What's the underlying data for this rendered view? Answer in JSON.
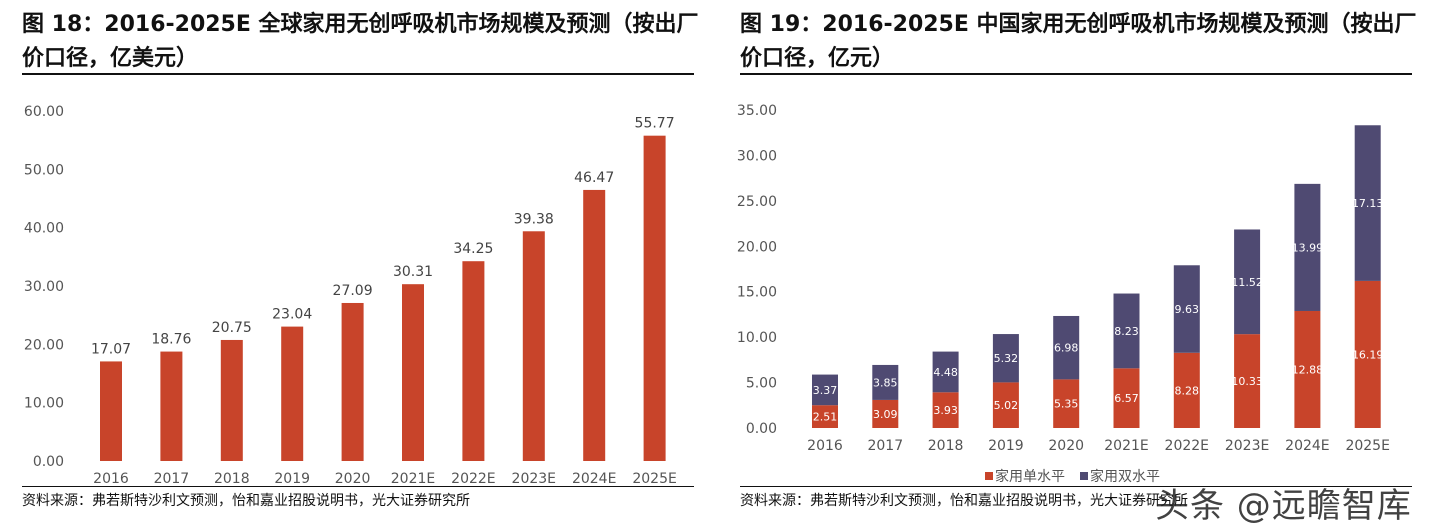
{
  "chart_data": [
    {
      "type": "bar",
      "title": "图 18：2016-2025E 全球家用无创呼吸机市场规模及预测（按出厂价口径，亿美元）",
      "categories": [
        "2016",
        "2017",
        "2018",
        "2019",
        "2020",
        "2021E",
        "2022E",
        "2023E",
        "2024E",
        "2025E"
      ],
      "values": [
        17.07,
        18.76,
        20.75,
        23.04,
        27.09,
        30.31,
        34.25,
        39.38,
        46.47,
        55.77
      ],
      "ylim": [
        0,
        60
      ],
      "yticks": [
        "0.00",
        "10.00",
        "20.00",
        "30.00",
        "40.00",
        "50.00",
        "60.00"
      ],
      "color": "#c8442a",
      "grid": false,
      "source": "资料来源：弗若斯特沙利文预测，怡和嘉业招股说明书，光大证券研究所"
    },
    {
      "type": "bar",
      "stacked": true,
      "title": "图 19：2016-2025E 中国家用无创呼吸机市场规模及预测（按出厂价口径，亿元）",
      "categories": [
        "2016",
        "2017",
        "2018",
        "2019",
        "2020",
        "2021E",
        "2022E",
        "2023E",
        "2024E",
        "2025E"
      ],
      "series": [
        {
          "name": "家用单水平",
          "color": "#c8442a",
          "values": [
            2.51,
            3.09,
            3.93,
            5.02,
            5.35,
            6.57,
            8.28,
            10.33,
            12.88,
            16.19
          ]
        },
        {
          "name": "家用双水平",
          "color": "#4f4a72",
          "values": [
            3.37,
            3.85,
            4.48,
            5.32,
            6.98,
            8.23,
            9.63,
            11.52,
            13.99,
            17.13
          ]
        }
      ],
      "ylim": [
        0,
        35
      ],
      "yticks": [
        "0.00",
        "5.00",
        "10.00",
        "15.00",
        "20.00",
        "25.00",
        "30.00",
        "35.00"
      ],
      "legend": "bottom",
      "grid": false,
      "source": "资料来源：弗若斯特沙利文预测，怡和嘉业招股说明书，光大证券研究所"
    }
  ],
  "watermark": "头条 @远瞻智库"
}
